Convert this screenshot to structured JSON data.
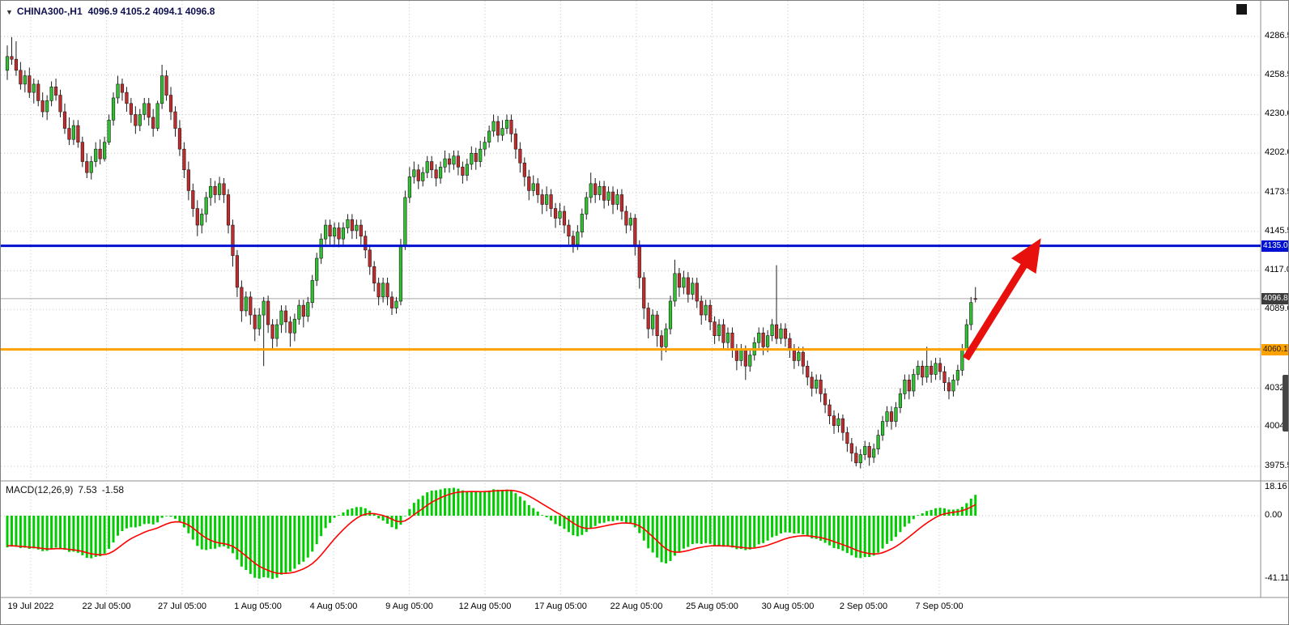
{
  "chart_data": {
    "type": "candlestick_with_macd",
    "symbol": "CHINA300-",
    "timeframe": "H1",
    "title_symbol": "CHINA300-,H1",
    "title_ohlc": "4096.9 4105.2 4094.1 4096.8",
    "last_ohlc": {
      "open": 4096.9,
      "high": 4105.2,
      "low": 4094.1,
      "close": 4096.8
    },
    "price_axis_labels": [
      "4286.5",
      "4258.5",
      "4230.0",
      "4202.0",
      "4173.5",
      "4145.5",
      "4117.0",
      "4089.0",
      "4060.5",
      "4032.0",
      "4004.0",
      "3975.5"
    ],
    "date_axis_labels": [
      "19 Jul 2022",
      "22 Jul 05:00",
      "27 Jul 05:00",
      "1 Aug 05:00",
      "4 Aug 05:00",
      "9 Aug 05:00",
      "12 Aug 05:00",
      "17 Aug 05:00",
      "22 Aug 05:00",
      "25 Aug 05:00",
      "30 Aug 05:00",
      "2 Sep 05:00",
      "7 Sep 05:00"
    ],
    "levels": {
      "resistance": {
        "price": "4135.0",
        "color": "#0010d0"
      },
      "current": {
        "price": "4096.8",
        "color": "#3c3c3c"
      },
      "support": {
        "price": "4060.1",
        "color": "#ffa200"
      }
    },
    "macd": {
      "label": "MACD(12,26,9)",
      "main_value": "7.53",
      "signal_value": "-1.58",
      "axis_labels": [
        "18.16",
        "0.00",
        "-41.11"
      ],
      "max": 18.16,
      "min": -41.11
    },
    "annotation": {
      "type": "up-arrow",
      "color": "#e8100c",
      "description": "Thick red arrow pointing up-right from the support bounce toward the 4135.0 resistance line"
    },
    "colors": {
      "bull_candle": "#2fc12f",
      "bear_candle": "#c12b2b",
      "candle_outline": "#1c1c1c",
      "macd_histogram": "#00cc00",
      "macd_signal": "#ff0000",
      "grid": "#c7c7c7"
    },
    "candles": [
      [
        4262,
        4280,
        4255,
        4272
      ],
      [
        4272,
        4286,
        4266,
        4270
      ],
      [
        4270,
        4283,
        4258,
        4262
      ],
      [
        4262,
        4268,
        4248,
        4252
      ],
      [
        4252,
        4262,
        4246,
        4258
      ],
      [
        4258,
        4264,
        4242,
        4246
      ],
      [
        4246,
        4256,
        4238,
        4252
      ],
      [
        4252,
        4255,
        4236,
        4240
      ],
      [
        4240,
        4246,
        4228,
        4232
      ],
      [
        4232,
        4244,
        4226,
        4240
      ],
      [
        4240,
        4254,
        4236,
        4250
      ],
      [
        4250,
        4256,
        4240,
        4244
      ],
      [
        4244,
        4248,
        4228,
        4232
      ],
      [
        4232,
        4238,
        4216,
        4220
      ],
      [
        4220,
        4228,
        4208,
        4212
      ],
      [
        4212,
        4226,
        4208,
        4222
      ],
      [
        4222,
        4226,
        4206,
        4210
      ],
      [
        4210,
        4214,
        4192,
        4196
      ],
      [
        4196,
        4202,
        4184,
        4188
      ],
      [
        4188,
        4200,
        4183,
        4196
      ],
      [
        4196,
        4210,
        4192,
        4205
      ],
      [
        4205,
        4212,
        4194,
        4198
      ],
      [
        4198,
        4214,
        4196,
        4210
      ],
      [
        4210,
        4230,
        4208,
        4226
      ],
      [
        4226,
        4246,
        4222,
        4242
      ],
      [
        4242,
        4258,
        4238,
        4252
      ],
      [
        4252,
        4256,
        4240,
        4246
      ],
      [
        4246,
        4250,
        4232,
        4238
      ],
      [
        4238,
        4242,
        4224,
        4230
      ],
      [
        4230,
        4236,
        4216,
        4222
      ],
      [
        4222,
        4234,
        4218,
        4230
      ],
      [
        4230,
        4242,
        4226,
        4238
      ],
      [
        4238,
        4242,
        4222,
        4228
      ],
      [
        4228,
        4234,
        4214,
        4220
      ],
      [
        4220,
        4240,
        4218,
        4238
      ],
      [
        4238,
        4266,
        4234,
        4258
      ],
      [
        4258,
        4262,
        4240,
        4244
      ],
      [
        4244,
        4250,
        4226,
        4232
      ],
      [
        4232,
        4236,
        4214,
        4220
      ],
      [
        4220,
        4226,
        4200,
        4205
      ],
      [
        4205,
        4210,
        4184,
        4190
      ],
      [
        4190,
        4196,
        4168,
        4175
      ],
      [
        4175,
        4180,
        4156,
        4162
      ],
      [
        4162,
        4168,
        4142,
        4150
      ],
      [
        4150,
        4162,
        4144,
        4158
      ],
      [
        4158,
        4174,
        4152,
        4170
      ],
      [
        4170,
        4184,
        4164,
        4178
      ],
      [
        4178,
        4182,
        4166,
        4172
      ],
      [
        4172,
        4185,
        4168,
        4180
      ],
      [
        4180,
        4184,
        4166,
        4172
      ],
      [
        4172,
        4176,
        4144,
        4150
      ],
      [
        4150,
        4154,
        4120,
        4128
      ],
      [
        4128,
        4132,
        4098,
        4105
      ],
      [
        4105,
        4110,
        4080,
        4088
      ],
      [
        4088,
        4102,
        4084,
        4098
      ],
      [
        4098,
        4102,
        4078,
        4085
      ],
      [
        4085,
        4090,
        4066,
        4075
      ],
      [
        4075,
        4090,
        4070,
        4085
      ],
      [
        4085,
        4098,
        4048,
        4095
      ],
      [
        4095,
        4099,
        4072,
        4078
      ],
      [
        4078,
        4082,
        4060,
        4068
      ],
      [
        4068,
        4082,
        4062,
        4078
      ],
      [
        4078,
        4092,
        4072,
        4088
      ],
      [
        4088,
        4092,
        4072,
        4080
      ],
      [
        4080,
        4084,
        4062,
        4072
      ],
      [
        4072,
        4086,
        4066,
        4082
      ],
      [
        4082,
        4096,
        4078,
        4092
      ],
      [
        4092,
        4096,
        4076,
        4084
      ],
      [
        4084,
        4098,
        4080,
        4094
      ],
      [
        4094,
        4114,
        4090,
        4110
      ],
      [
        4110,
        4130,
        4106,
        4126
      ],
      [
        4126,
        4144,
        4122,
        4140
      ],
      [
        4140,
        4154,
        4136,
        4150
      ],
      [
        4150,
        4154,
        4136,
        4142
      ],
      [
        4142,
        4152,
        4136,
        4148
      ],
      [
        4148,
        4152,
        4134,
        4140
      ],
      [
        4140,
        4152,
        4136,
        4148
      ],
      [
        4148,
        4158,
        4144,
        4154
      ],
      [
        4154,
        4158,
        4140,
        4146
      ],
      [
        4146,
        4154,
        4140,
        4150
      ],
      [
        4150,
        4154,
        4136,
        4142
      ],
      [
        4142,
        4146,
        4126,
        4132
      ],
      [
        4132,
        4136,
        4114,
        4120
      ],
      [
        4120,
        4124,
        4102,
        4108
      ],
      [
        4108,
        4112,
        4092,
        4098
      ],
      [
        4098,
        4112,
        4094,
        4108
      ],
      [
        4108,
        4112,
        4092,
        4098
      ],
      [
        4098,
        4102,
        4085,
        4090
      ],
      [
        4090,
        4098,
        4086,
        4095
      ],
      [
        4095,
        4140,
        4092,
        4135
      ],
      [
        4135,
        4175,
        4132,
        4170
      ],
      [
        4170,
        4192,
        4166,
        4185
      ],
      [
        4185,
        4196,
        4180,
        4190
      ],
      [
        4190,
        4194,
        4176,
        4182
      ],
      [
        4182,
        4192,
        4178,
        4188
      ],
      [
        4188,
        4200,
        4184,
        4196
      ],
      [
        4196,
        4200,
        4184,
        4190
      ],
      [
        4190,
        4194,
        4178,
        4184
      ],
      [
        4184,
        4196,
        4180,
        4192
      ],
      [
        4192,
        4204,
        4188,
        4198
      ],
      [
        4198,
        4202,
        4188,
        4194
      ],
      [
        4194,
        4204,
        4190,
        4200
      ],
      [
        4200,
        4204,
        4186,
        4192
      ],
      [
        4192,
        4196,
        4180,
        4186
      ],
      [
        4186,
        4198,
        4182,
        4194
      ],
      [
        4194,
        4207,
        4190,
        4202
      ],
      [
        4202,
        4206,
        4190,
        4196
      ],
      [
        4196,
        4211,
        4192,
        4205
      ],
      [
        4205,
        4214,
        4200,
        4210
      ],
      [
        4210,
        4222,
        4206,
        4218
      ],
      [
        4218,
        4230,
        4214,
        4225
      ],
      [
        4225,
        4229,
        4210,
        4215
      ],
      [
        4215,
        4226,
        4211,
        4220
      ],
      [
        4220,
        4230,
        4216,
        4226
      ],
      [
        4226,
        4230,
        4210,
        4216
      ],
      [
        4216,
        4220,
        4198,
        4205
      ],
      [
        4205,
        4210,
        4188,
        4195
      ],
      [
        4195,
        4199,
        4178,
        4185
      ],
      [
        4185,
        4190,
        4168,
        4175
      ],
      [
        4175,
        4186,
        4171,
        4180
      ],
      [
        4180,
        4184,
        4166,
        4172
      ],
      [
        4172,
        4176,
        4158,
        4165
      ],
      [
        4165,
        4178,
        4160,
        4172
      ],
      [
        4172,
        4176,
        4156,
        4162
      ],
      [
        4162,
        4166,
        4148,
        4155
      ],
      [
        4155,
        4166,
        4150,
        4160
      ],
      [
        4160,
        4164,
        4144,
        4150
      ],
      [
        4150,
        4154,
        4136,
        4142
      ],
      [
        4142,
        4146,
        4130,
        4136
      ],
      [
        4136,
        4150,
        4132,
        4145
      ],
      [
        4145,
        4162,
        4141,
        4158
      ],
      [
        4158,
        4174,
        4154,
        4170
      ],
      [
        4170,
        4188,
        4166,
        4180
      ],
      [
        4180,
        4184,
        4166,
        4172
      ],
      [
        4172,
        4182,
        4168,
        4178
      ],
      [
        4178,
        4182,
        4162,
        4168
      ],
      [
        4168,
        4178,
        4164,
        4174
      ],
      [
        4174,
        4178,
        4158,
        4165
      ],
      [
        4165,
        4176,
        4161,
        4172
      ],
      [
        4172,
        4176,
        4154,
        4160
      ],
      [
        4160,
        4164,
        4144,
        4150
      ],
      [
        4150,
        4159,
        4146,
        4155
      ],
      [
        4155,
        4158,
        4128,
        4135
      ],
      [
        4135,
        4139,
        4104,
        4112
      ],
      [
        4112,
        4116,
        4082,
        4090
      ],
      [
        4090,
        4094,
        4068,
        4075
      ],
      [
        4075,
        4089,
        4070,
        4085
      ],
      [
        4085,
        4088,
        4062,
        4070
      ],
      [
        4070,
        4074,
        4052,
        4062
      ],
      [
        4062,
        4079,
        4058,
        4075
      ],
      [
        4075,
        4099,
        4071,
        4095
      ],
      [
        4095,
        4125,
        4091,
        4115
      ],
      [
        4115,
        4119,
        4098,
        4105
      ],
      [
        4105,
        4117,
        4100,
        4112
      ],
      [
        4112,
        4116,
        4094,
        4100
      ],
      [
        4100,
        4112,
        4096,
        4108
      ],
      [
        4108,
        4112,
        4090,
        4095
      ],
      [
        4095,
        4099,
        4078,
        4085
      ],
      [
        4085,
        4096,
        4081,
        4092
      ],
      [
        4092,
        4096,
        4074,
        4080
      ],
      [
        4080,
        4084,
        4064,
        4070
      ],
      [
        4070,
        4082,
        4066,
        4078
      ],
      [
        4078,
        4082,
        4060,
        4065
      ],
      [
        4065,
        4076,
        4061,
        4072
      ],
      [
        4072,
        4076,
        4054,
        4060
      ],
      [
        4060,
        4064,
        4045,
        4052
      ],
      [
        4052,
        4064,
        4048,
        4060
      ],
      [
        4060,
        4063,
        4038,
        4048
      ],
      [
        4048,
        4060,
        4044,
        4056
      ],
      [
        4056,
        4069,
        4052,
        4065
      ],
      [
        4065,
        4076,
        4061,
        4072
      ],
      [
        4072,
        4076,
        4056,
        4062
      ],
      [
        4062,
        4074,
        4058,
        4070
      ],
      [
        4070,
        4082,
        4066,
        4078
      ],
      [
        4078,
        4121,
        4064,
        4068
      ],
      [
        4068,
        4079,
        4064,
        4075
      ],
      [
        4075,
        4079,
        4062,
        4068
      ],
      [
        4068,
        4072,
        4054,
        4060
      ],
      [
        4060,
        4064,
        4046,
        4052
      ],
      [
        4052,
        4062,
        4048,
        4058
      ],
      [
        4058,
        4062,
        4042,
        4048
      ],
      [
        4048,
        4052,
        4034,
        4040
      ],
      [
        4040,
        4044,
        4026,
        4032
      ],
      [
        4032,
        4042,
        4028,
        4038
      ],
      [
        4038,
        4042,
        4022,
        4028
      ],
      [
        4028,
        4032,
        4014,
        4020
      ],
      [
        4020,
        4024,
        4006,
        4012
      ],
      [
        4012,
        4016,
        3999,
        4005
      ],
      [
        4005,
        4014,
        4000,
        4010
      ],
      [
        4010,
        4013,
        3994,
        4000
      ],
      [
        4000,
        4004,
        3986,
        3992
      ],
      [
        3992,
        3996,
        3979,
        3985
      ],
      [
        3985,
        3990,
        3975.5,
        3978
      ],
      [
        3978,
        3988,
        3974,
        3984
      ],
      [
        3984,
        3994,
        3980,
        3990
      ],
      [
        3990,
        3993,
        3976,
        3982
      ],
      [
        3982,
        3992,
        3978,
        3988
      ],
      [
        3988,
        4002,
        3984,
        3998
      ],
      [
        3998,
        4012,
        3994,
        4008
      ],
      [
        4008,
        4019,
        4004,
        4015
      ],
      [
        4015,
        4019,
        4002,
        4008
      ],
      [
        4008,
        4022,
        4004,
        4018
      ],
      [
        4018,
        4032,
        4014,
        4028
      ],
      [
        4028,
        4042,
        4024,
        4038
      ],
      [
        4038,
        4042,
        4024,
        4030
      ],
      [
        4030,
        4046,
        4026,
        4042
      ],
      [
        4042,
        4052,
        4038,
        4048
      ],
      [
        4048,
        4052,
        4034,
        4040
      ],
      [
        4040,
        4062,
        4036,
        4048
      ],
      [
        4048,
        4052,
        4036,
        4042
      ],
      [
        4042,
        4054,
        4038,
        4050
      ],
      [
        4050,
        4054,
        4038,
        4044
      ],
      [
        4044,
        4048,
        4030,
        4036
      ],
      [
        4036,
        4040,
        4024,
        4030
      ],
      [
        4030,
        4042,
        4026,
        4038
      ],
      [
        4038,
        4049,
        4034,
        4045
      ],
      [
        4045,
        4064,
        4041,
        4060
      ],
      [
        4060,
        4082,
        4056,
        4078
      ],
      [
        4078,
        4098,
        4074,
        4094
      ],
      [
        4096.9,
        4105.2,
        4094.1,
        4096.8
      ]
    ]
  }
}
